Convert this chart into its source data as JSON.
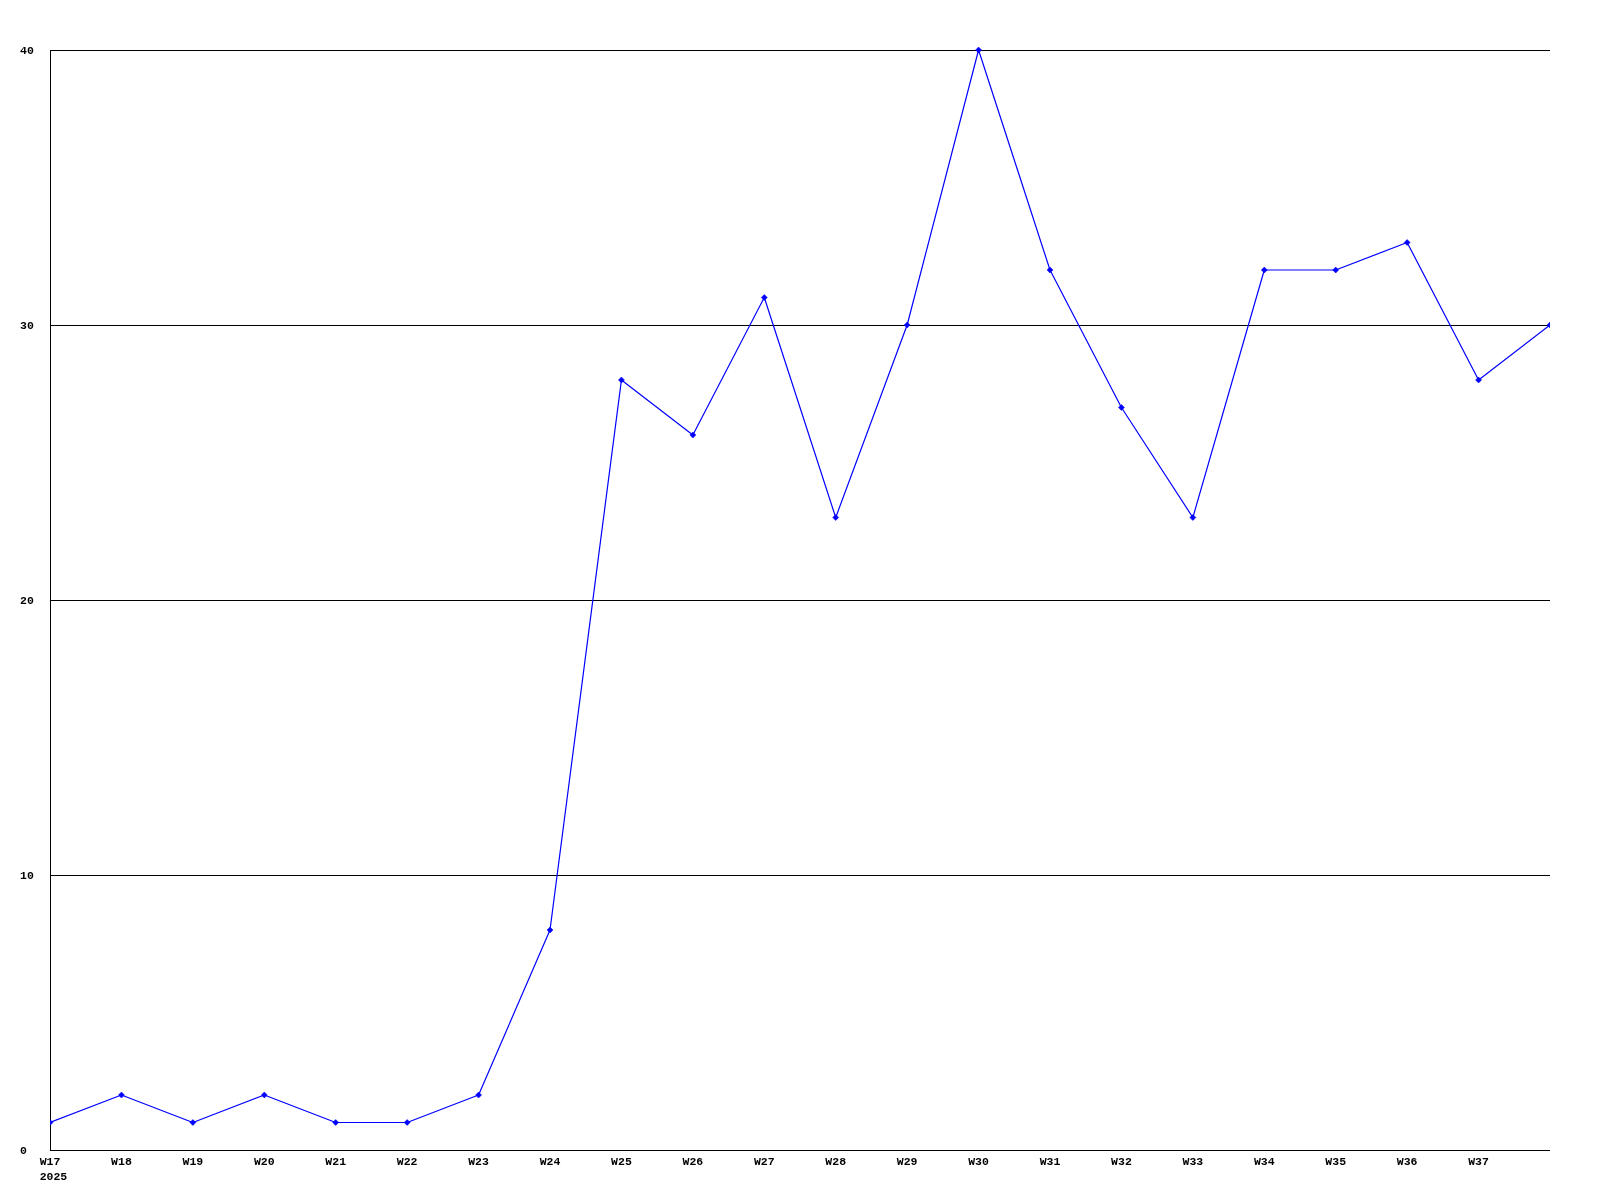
{
  "chart_data": {
    "type": "line",
    "categories": [
      "W17\n2025",
      "W18",
      "W19",
      "W20",
      "W21",
      "W22",
      "W23",
      "W24",
      "W25",
      "W26",
      "W27",
      "W28",
      "W29",
      "W30",
      "W31",
      "W32",
      "W33",
      "W34",
      "W35",
      "W36",
      "W37",
      null
    ],
    "series": [
      {
        "color": "#0000ff",
        "values": [
          1,
          2,
          1,
          2,
          1,
          1,
          2,
          8,
          28,
          26,
          31,
          23,
          30,
          40,
          32,
          27,
          23,
          32,
          32,
          33,
          28,
          30
        ]
      }
    ],
    "ylim": [
      0,
      40
    ],
    "yticks": [
      0,
      10,
      20,
      30,
      40
    ],
    "grid": "y",
    "marker": "diamond",
    "line_style": "solid"
  }
}
